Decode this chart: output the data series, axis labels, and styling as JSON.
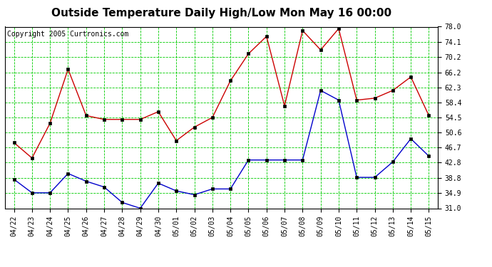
{
  "title": "Outside Temperature Daily High/Low Mon May 16 00:00",
  "copyright": "Copyright 2005 Curtronics.com",
  "labels": [
    "04/22",
    "04/23",
    "04/24",
    "04/25",
    "04/26",
    "04/27",
    "04/28",
    "04/29",
    "04/30",
    "05/01",
    "05/02",
    "05/03",
    "05/04",
    "05/05",
    "05/06",
    "05/07",
    "05/08",
    "05/09",
    "05/10",
    "05/11",
    "05/12",
    "05/13",
    "05/14",
    "05/15"
  ],
  "high": [
    48.0,
    44.0,
    53.0,
    67.0,
    55.0,
    54.0,
    54.0,
    54.0,
    56.0,
    48.5,
    52.0,
    54.5,
    64.0,
    71.0,
    75.5,
    57.5,
    77.0,
    72.0,
    77.5,
    59.0,
    59.5,
    61.5,
    65.0,
    55.0
  ],
  "low": [
    38.5,
    35.0,
    35.0,
    40.0,
    38.0,
    36.5,
    32.5,
    31.0,
    37.5,
    35.5,
    34.5,
    36.0,
    36.0,
    43.5,
    43.5,
    43.5,
    43.5,
    61.5,
    59.0,
    39.0,
    39.0,
    43.0,
    49.0,
    44.5
  ],
  "high_color": "#cc0000",
  "low_color": "#0000cc",
  "bg_color": "#ffffff",
  "plot_bg_color": "#ffffff",
  "grid_color": "#00cc00",
  "ylim": [
    31.0,
    78.0
  ],
  "yticks": [
    31.0,
    34.9,
    38.8,
    42.8,
    46.7,
    50.6,
    54.5,
    58.4,
    62.3,
    66.2,
    70.2,
    74.1,
    78.0
  ],
  "title_fontsize": 11,
  "tick_fontsize": 7,
  "copyright_fontsize": 7
}
